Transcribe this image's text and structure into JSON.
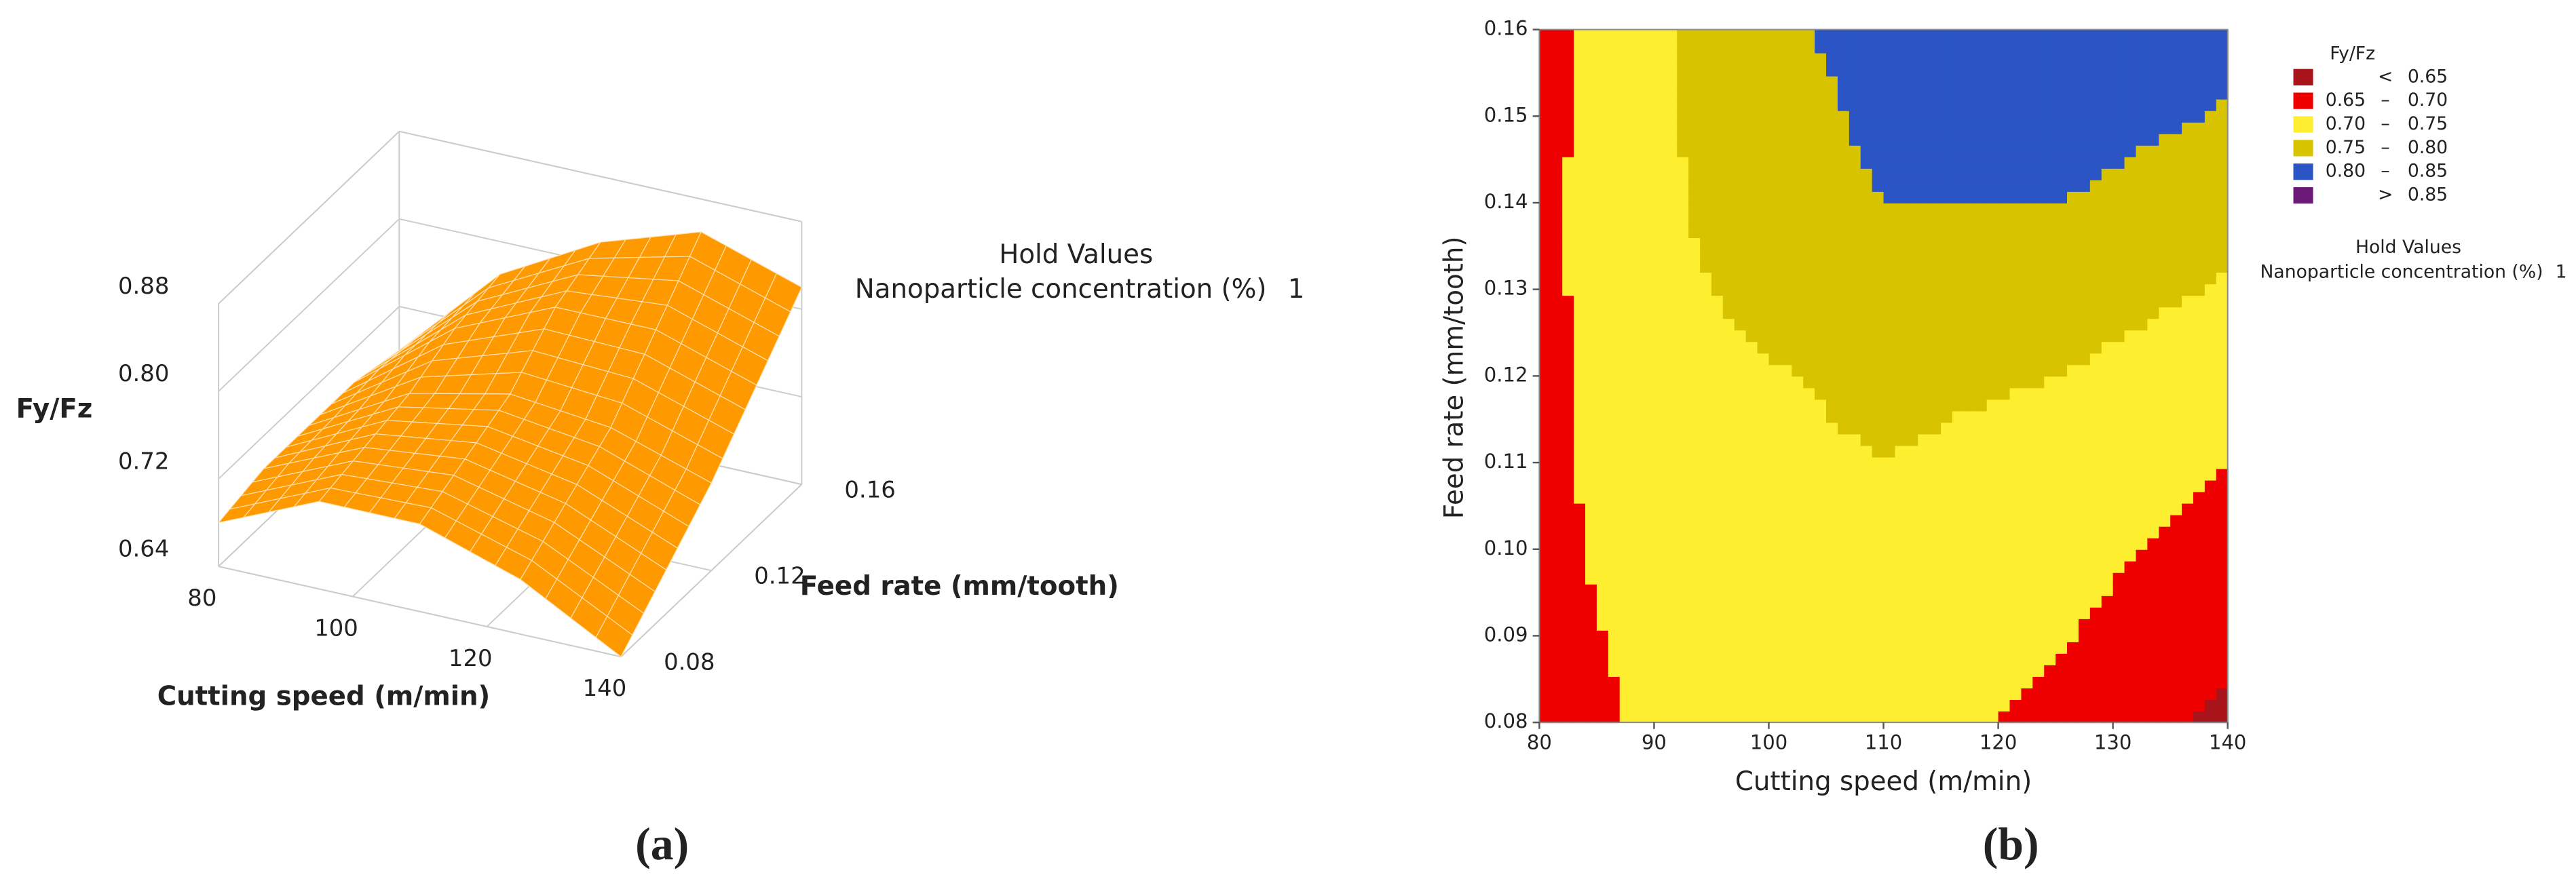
{
  "chart_data": [
    {
      "type": "surface",
      "xlabel": "Cutting speed (m/min)",
      "ylabel": "Feed rate (mm/tooth)",
      "zlabel": "Fy/Fz",
      "hold_title": "Hold Values",
      "hold_label": "Nanoparticle concentration (%)",
      "hold_value": 1,
      "caption": "(a)",
      "color": "#ff9900",
      "x": [
        80,
        95,
        110,
        125,
        140
      ],
      "y": [
        0.08,
        0.1,
        0.12,
        0.14,
        0.16
      ],
      "z": [
        [
          0.68,
          0.72,
          0.72,
          0.69,
          0.64
        ],
        [
          0.69,
          0.73,
          0.74,
          0.72,
          0.68
        ],
        [
          0.69,
          0.74,
          0.76,
          0.75,
          0.72
        ],
        [
          0.69,
          0.76,
          0.8,
          0.8,
          0.77
        ],
        [
          0.68,
          0.77,
          0.82,
          0.85,
          0.82
        ]
      ],
      "xlim": [
        80,
        140
      ],
      "xticks": [
        80,
        100,
        120,
        140
      ],
      "ylim": [
        0.08,
        0.16
      ],
      "yticks": [
        0.08,
        0.12,
        0.16
      ],
      "zlim": [
        0.64,
        0.88
      ],
      "zticks": [
        0.64,
        0.72,
        {
          "value": 0.8,
          "label": "0.80"
        },
        0.88
      ]
    },
    {
      "type": "contour",
      "xlabel": "Cutting speed (m/min)",
      "ylabel": "Feed rate (mm/tooth)",
      "legend_title": "Fy/Fz",
      "legend_symbols": {
        "below": "<",
        "between": "–",
        "above": ">"
      },
      "hold_title": "Hold Values",
      "hold_label": "Nanoparticle concentration (%)",
      "hold_value": 1,
      "caption": "(b)",
      "levels": [
        0.65,
        {
          "value": 0.7,
          "label": "0.70"
        },
        0.75,
        {
          "value": 0.8,
          "label": "0.80"
        },
        0.85
      ],
      "colors": [
        "#a8141a",
        "#ee0000",
        "#fdee30",
        "#d8c300",
        "#2b55c4",
        "#6b1a78"
      ],
      "x": [
        80,
        95,
        110,
        125,
        140
      ],
      "y": [
        0.08,
        0.1,
        0.12,
        0.14,
        0.16
      ],
      "z": [
        [
          0.68,
          0.72,
          0.72,
          0.69,
          0.64
        ],
        [
          0.69,
          0.73,
          0.74,
          0.72,
          0.68
        ],
        [
          0.69,
          0.74,
          0.76,
          0.75,
          0.72
        ],
        [
          0.69,
          0.76,
          0.8,
          0.8,
          0.77
        ],
        [
          0.68,
          0.77,
          0.82,
          0.85,
          0.82
        ]
      ],
      "xlim": [
        80,
        140
      ],
      "xticks": [
        80,
        90,
        100,
        110,
        120,
        130,
        140
      ],
      "ylim": [
        0.08,
        0.16
      ],
      "yticks": [
        0.08,
        0.09,
        {
          "value": 0.1,
          "label": "0.10"
        },
        0.11,
        0.12,
        0.13,
        0.14,
        0.15,
        0.16
      ]
    }
  ]
}
